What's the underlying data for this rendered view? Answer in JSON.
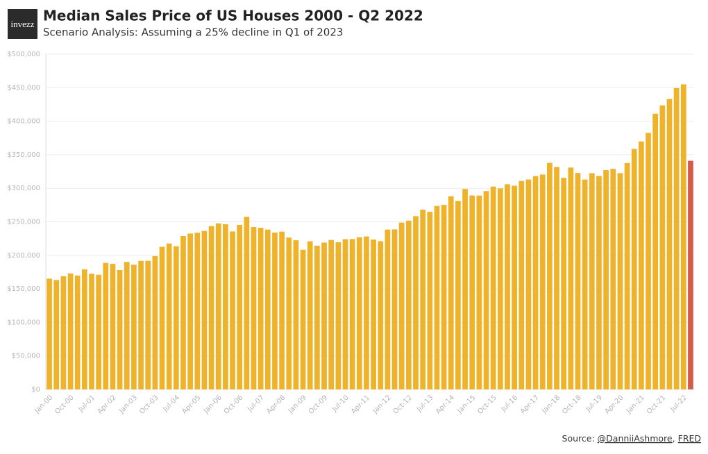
{
  "logo": "invezz",
  "chart_data": {
    "type": "bar",
    "title": "Median Sales Price of US Houses 2000 - Q2 2022",
    "subtitle": "Scenario Analysis: Assuming a 25% decline in Q1 of 2023",
    "source": {
      "prefix": "Source:",
      "links": [
        "@DanniiAshmore",
        "FRED"
      ],
      "separator": ","
    },
    "categories": [
      "Jan-00",
      null,
      null,
      "Oct-00",
      null,
      null,
      "Jul-01",
      null,
      null,
      "Apr-02",
      null,
      null,
      "Jan-03",
      null,
      null,
      "Oct-03",
      null,
      null,
      "Jul-04",
      null,
      null,
      "Apr-05",
      null,
      null,
      "Jan-06",
      null,
      null,
      "Oct-06",
      null,
      null,
      "Jul-07",
      null,
      null,
      "Apr-08",
      null,
      null,
      "Jan-09",
      null,
      null,
      "Oct-09",
      null,
      null,
      "Jul-10",
      null,
      null,
      "Apr-11",
      null,
      null,
      "Jan-12",
      null,
      null,
      "Oct-12",
      null,
      null,
      "Jul-13",
      null,
      null,
      "Apr-14",
      null,
      null,
      "Jan-15",
      null,
      null,
      "Oct-15",
      null,
      null,
      "Jul-16",
      null,
      null,
      "Apr-17",
      null,
      null,
      "Jan-18",
      null,
      null,
      "Oct-18",
      null,
      null,
      "Jul-19",
      null,
      null,
      "Apr-20",
      null,
      null,
      "Jan-21",
      null,
      null,
      "Oct-21",
      null,
      null,
      "Jul-22",
      null
    ],
    "values": [
      165300,
      163200,
      168800,
      172900,
      169800,
      179000,
      172500,
      171100,
      188700,
      187200,
      178100,
      190100,
      186000,
      191800,
      191900,
      198800,
      212700,
      217600,
      213500,
      228800,
      232500,
      233700,
      236400,
      243600,
      247700,
      246300,
      235600,
      245400,
      257400,
      242200,
      241000,
      238400,
      233900,
      235300,
      226500,
      222500,
      208400,
      220900,
      214300,
      219000,
      222900,
      219500,
      224100,
      224300,
      226900,
      228100,
      223500,
      221100,
      238400,
      238700,
      248800,
      251700,
      258400,
      268100,
      264800,
      273600,
      275200,
      288000,
      281000,
      298900,
      289200,
      289100,
      295800,
      302500,
      299800,
      306000,
      303800,
      310900,
      313100,
      318200,
      320500,
      337900,
      331800,
      315600,
      330900,
      322800,
      313000,
      322500,
      318400,
      327100,
      329000,
      322600,
      337500,
      358700,
      369800,
      382600,
      411200,
      423600,
      433100,
      449300,
      455000,
      341000
    ],
    "colors": [
      "#eeb32b",
      "#eeb32b",
      "#eeb32b",
      "#eeb32b",
      "#eeb32b",
      "#eeb32b",
      "#eeb32b",
      "#eeb32b",
      "#eeb32b",
      "#eeb32b",
      "#eeb32b",
      "#eeb32b",
      "#eeb32b",
      "#eeb32b",
      "#eeb32b",
      "#eeb32b",
      "#eeb32b",
      "#eeb32b",
      "#eeb32b",
      "#eeb32b",
      "#eeb32b",
      "#eeb32b",
      "#eeb32b",
      "#eeb32b",
      "#eeb32b",
      "#eeb32b",
      "#eeb32b",
      "#eeb32b",
      "#eeb32b",
      "#eeb32b",
      "#eeb32b",
      "#eeb32b",
      "#eeb32b",
      "#eeb32b",
      "#eeb32b",
      "#eeb32b",
      "#eeb32b",
      "#eeb32b",
      "#eeb32b",
      "#eeb32b",
      "#eeb32b",
      "#eeb32b",
      "#eeb32b",
      "#eeb32b",
      "#eeb32b",
      "#eeb32b",
      "#eeb32b",
      "#eeb32b",
      "#eeb32b",
      "#eeb32b",
      "#eeb32b",
      "#eeb32b",
      "#eeb32b",
      "#eeb32b",
      "#eeb32b",
      "#eeb32b",
      "#eeb32b",
      "#eeb32b",
      "#eeb32b",
      "#eeb32b",
      "#eeb32b",
      "#eeb32b",
      "#eeb32b",
      "#eeb32b",
      "#eeb32b",
      "#eeb32b",
      "#eeb32b",
      "#eeb32b",
      "#eeb32b",
      "#eeb32b",
      "#eeb32b",
      "#eeb32b",
      "#eeb32b",
      "#eeb32b",
      "#eeb32b",
      "#eeb32b",
      "#eeb32b",
      "#eeb32b",
      "#eeb32b",
      "#eeb32b",
      "#eeb32b",
      "#eeb32b",
      "#eeb32b",
      "#eeb32b",
      "#eeb32b",
      "#eeb32b",
      "#eeb32b",
      "#eeb32b",
      "#eeb32b",
      "#eeb32b",
      "#eeb32b",
      "#d65b48"
    ],
    "ylim": [
      0,
      500000
    ],
    "yticks": [
      {
        "value": 0,
        "label": "$0"
      },
      {
        "value": 50000,
        "label": "$50,000"
      },
      {
        "value": 100000,
        "label": "$100,000"
      },
      {
        "value": 150000,
        "label": "$150,000"
      },
      {
        "value": 200000,
        "label": "$200,000"
      },
      {
        "value": 250000,
        "label": "$250,000"
      },
      {
        "value": 300000,
        "label": "$300,000"
      },
      {
        "value": 350000,
        "label": "$350,000"
      },
      {
        "value": 400000,
        "label": "$400,000"
      },
      {
        "value": 450000,
        "label": "$450,000"
      },
      {
        "value": 500000,
        "label": "$500,000"
      }
    ],
    "grid": true
  }
}
